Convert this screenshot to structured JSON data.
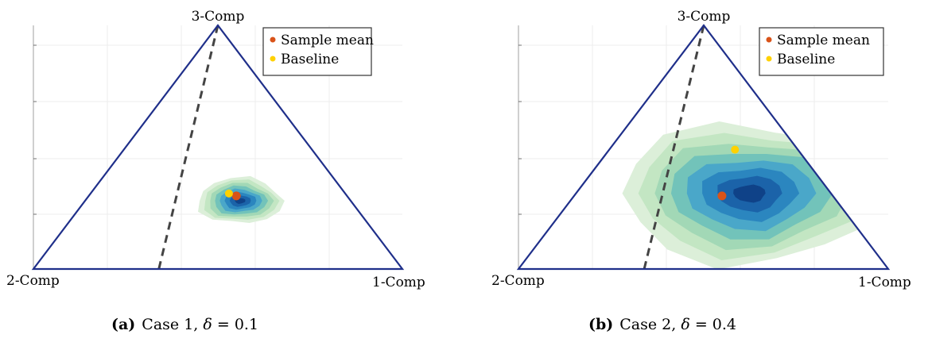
{
  "chart_data": [
    {
      "type": "ternary-contour",
      "caption": {
        "label": "(a)",
        "text": "Case 1, ",
        "symbol": "δ",
        "eq": " = 0.1"
      },
      "vertices": {
        "top": "3-Comp",
        "left": "2-Comp",
        "right": "1-Comp"
      },
      "legend": {
        "placement": "top-right",
        "items": [
          {
            "label": "Sample mean",
            "color": "#d95319"
          },
          {
            "label": "Baseline",
            "color": "#ffd100"
          }
        ]
      },
      "grid": true,
      "sample_mean": {
        "a": 0.4,
        "b": 0.3,
        "c": 0.3
      },
      "baseline": {
        "a": 0.375,
        "b": 0.315,
        "c": 0.31
      },
      "dashed_line": {
        "start": {
          "a": 0.34,
          "b": 0.66,
          "c": 0.0
        },
        "end": {
          "a": 0.0,
          "b": 0.0,
          "c": 1.0
        }
      },
      "density": {
        "center": {
          "a": 0.42,
          "b": 0.3,
          "c": 0.28
        },
        "spread_x": 0.23,
        "spread_y": 0.125,
        "levels": 8
      }
    },
    {
      "type": "ternary-contour",
      "caption": {
        "label": "(b)",
        "text": "Case 2, ",
        "symbol": "δ",
        "eq": " = 0.4"
      },
      "vertices": {
        "top": "3-Comp",
        "left": "2-Comp",
        "right": "1-Comp"
      },
      "legend": {
        "placement": "top-right",
        "items": [
          {
            "label": "Sample mean",
            "color": "#d95319"
          },
          {
            "label": "Baseline",
            "color": "#ffd100"
          }
        ]
      },
      "grid": true,
      "sample_mean": {
        "a": 0.4,
        "b": 0.3,
        "c": 0.3
      },
      "baseline": {
        "a": 0.34,
        "b": 0.17,
        "c": 0.49
      },
      "dashed_line": {
        "start": {
          "a": 0.34,
          "b": 0.66,
          "c": 0.0
        },
        "end": {
          "a": 0.0,
          "b": 0.0,
          "c": 1.0
        }
      },
      "density": {
        "center": {
          "a": 0.47,
          "b": 0.22,
          "c": 0.31
        },
        "spread_x": 0.7,
        "spread_y": 0.38,
        "levels": 8
      }
    }
  ],
  "colors": {
    "frame": "#1f2f8a",
    "dash": "#444444",
    "grid": "#ececec",
    "contour": [
      "#dcefd9",
      "#c3e6c3",
      "#a2d8b6",
      "#72c3ba",
      "#4aa7c9",
      "#2b86bf",
      "#1b63a9",
      "#0f4288"
    ]
  }
}
